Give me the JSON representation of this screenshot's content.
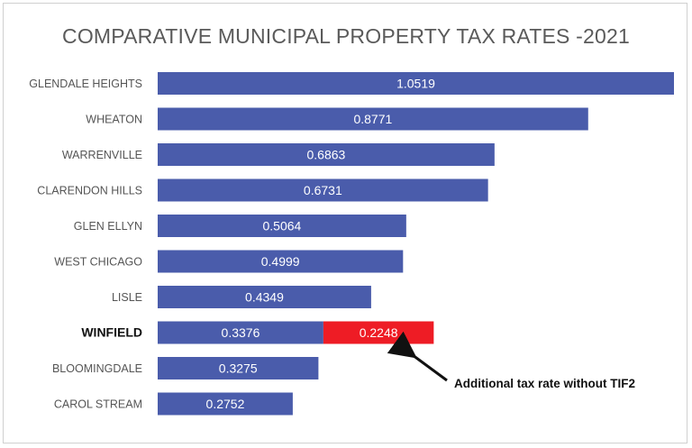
{
  "chart_data": {
    "type": "bar",
    "orientation": "horizontal",
    "title": "COMPARATIVE MUNICIPAL PROPERTY TAX RATES -2021",
    "categories": [
      "GLENDALE HEIGHTS",
      "WHEATON",
      "WARRENVILLE",
      "CLARENDON HILLS",
      "GLEN ELLYN",
      "WEST CHICAGO",
      "LISLE",
      "WINFIELD",
      "BLOOMINGDALE",
      "CAROL STREAM"
    ],
    "values": [
      1.0519,
      0.8771,
      0.6863,
      0.6731,
      0.5064,
      0.4999,
      0.4349,
      0.3376,
      0.3275,
      0.2752
    ],
    "value_labels": [
      "1.0519",
      "0.8771",
      "0.6863",
      "0.6731",
      "0.5064",
      "0.4999",
      "0.4349",
      "0.3376",
      "0.3275",
      "0.2752"
    ],
    "highlight_category": "WINFIELD",
    "stacked_extra": {
      "category": "WINFIELD",
      "value": 0.2248,
      "label": "0.2248",
      "color": "#ee1c25"
    },
    "annotation": "Additional tax rate without TIF2",
    "bar_color": "#4a5cab",
    "xlim": [
      0,
      1.0519
    ]
  }
}
